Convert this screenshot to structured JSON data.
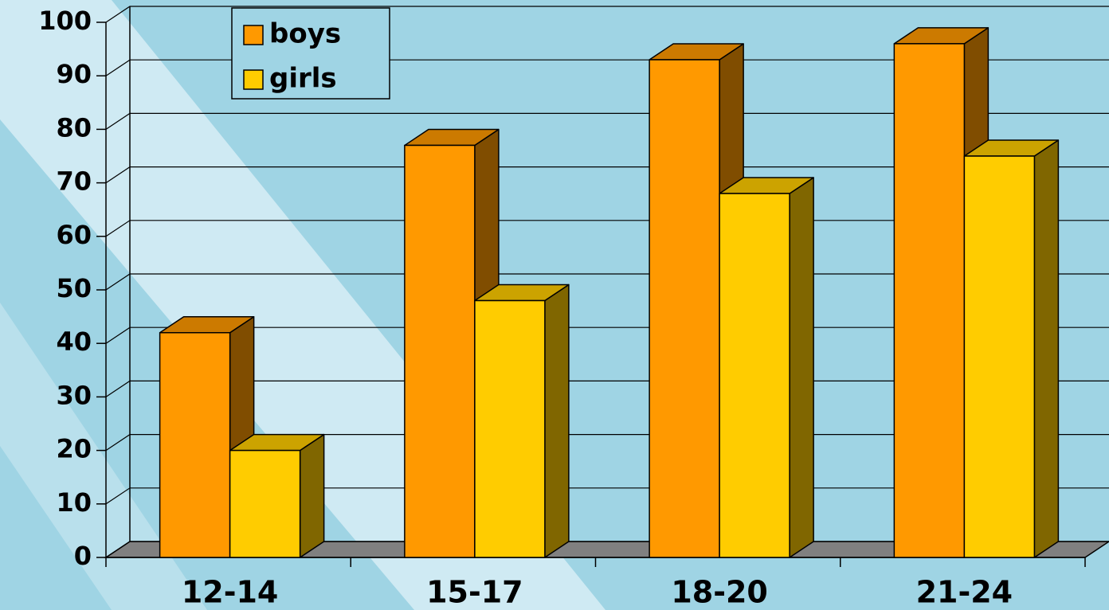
{
  "chart_data": {
    "type": "bar3d",
    "categories": [
      "12-14",
      "15-17",
      "18-20",
      "21-24"
    ],
    "series": [
      {
        "name": "boys",
        "color": "#ff9900",
        "values": [
          42,
          77,
          93,
          96
        ]
      },
      {
        "name": "girls",
        "color": "#ffcc00",
        "values": [
          20,
          48,
          68,
          75
        ]
      }
    ],
    "ylim": [
      0,
      100
    ],
    "yticks": [
      0,
      10,
      20,
      30,
      40,
      50,
      60,
      70,
      80,
      90,
      100
    ],
    "grid": true
  }
}
